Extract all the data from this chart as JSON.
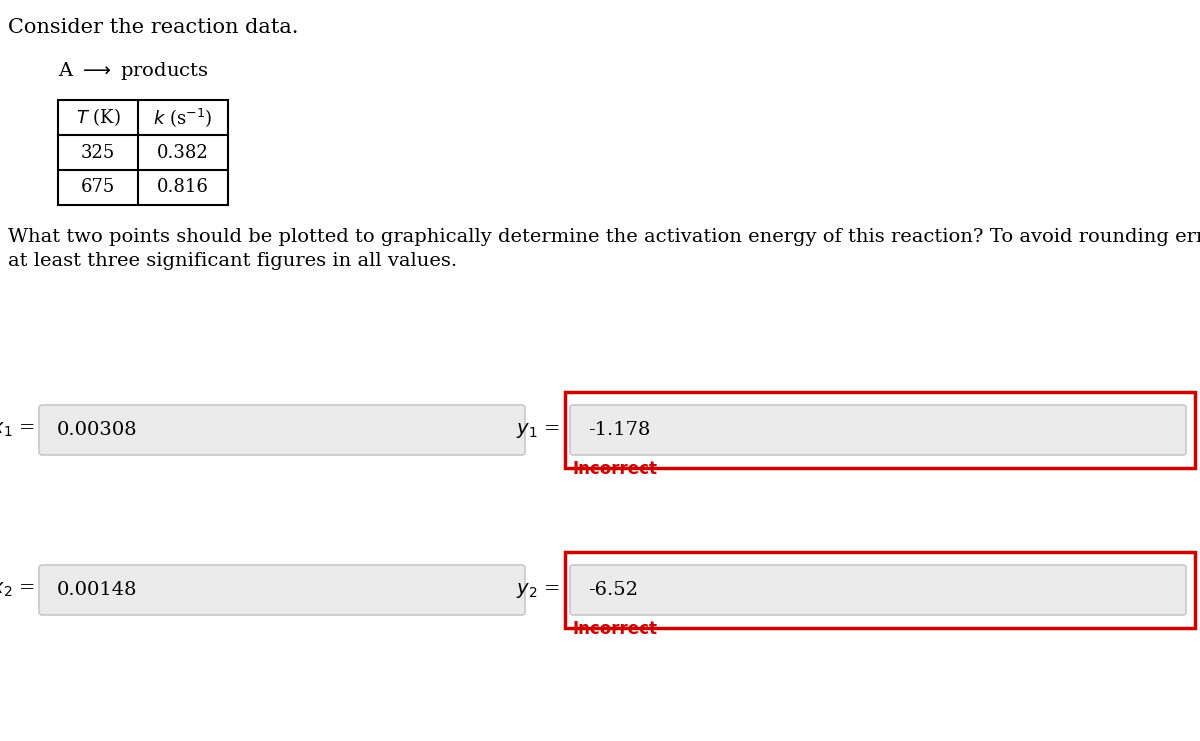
{
  "title": "Consider the reaction data.",
  "reaction_left": "A",
  "reaction_right": "products",
  "table_headers": [
    "T (K)",
    "k (s⁻¹)"
  ],
  "table_data": [
    [
      "325",
      "0.382"
    ],
    [
      "675",
      "0.816"
    ]
  ],
  "question_line1": "What two points should be plotted to graphically determine the activation energy of this reaction? To avoid rounding errors, use",
  "question_line2": "at least three significant figures in all values.",
  "x1_value": "0.00308",
  "x2_value": "0.00148",
  "y1_value": "-1.178",
  "y2_value": "-6.52",
  "incorrect_text": "Incorrect",
  "incorrect_color": "#cc0000",
  "bg_color": "#ffffff",
  "input_box_bg": "#ebebeb",
  "input_box_border": "#c8c8c8",
  "red_border_color": "#cc0000",
  "text_color": "#000000"
}
